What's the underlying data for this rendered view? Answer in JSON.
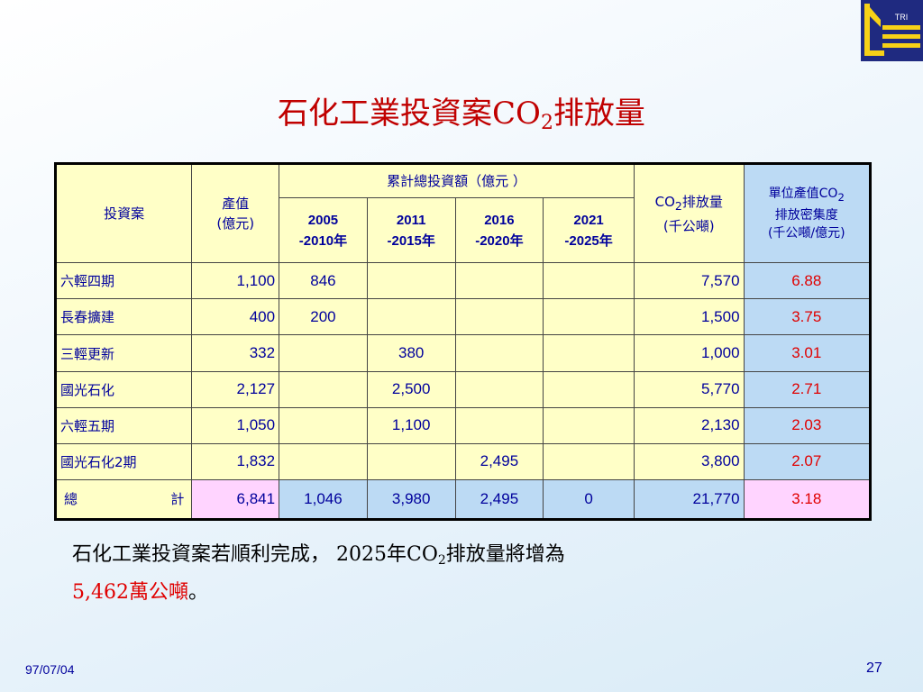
{
  "logo": {
    "text": "TRI",
    "color": "#f7d117",
    "bg": "#1f2a80"
  },
  "title": {
    "main": "石化工業投資案CO",
    "sub": "2",
    "tail": "排放量"
  },
  "table": {
    "col_project": "投資案",
    "col_value_line1": "產值",
    "col_value_line2": "(億元)",
    "col_invest": "累計總投資額（億元 ）",
    "years": [
      {
        "a": "2005",
        "b": "-2010年"
      },
      {
        "a": "2011",
        "b": "-2015年"
      },
      {
        "a": "2016",
        "b": "-2020年"
      },
      {
        "a": "2021",
        "b": "-2025年"
      }
    ],
    "col_co2_a": "CO",
    "col_co2_sub": "2",
    "col_co2_b": "排放量",
    "col_co2_c": "(千公噸)",
    "col_int_a": "單位產值CO",
    "col_int_sub": "2",
    "col_int_b": "排放密集度",
    "col_int_c": "(千公噸/億元)",
    "rows": [
      {
        "name": "六輕四期",
        "value": "1,100",
        "y1": "846",
        "y2": "",
        "y3": "",
        "y4": "",
        "co2": "7,570",
        "ratio": "6.88"
      },
      {
        "name": "長春擴建",
        "value": "400",
        "y1": "200",
        "y2": "",
        "y3": "",
        "y4": "",
        "co2": "1,500",
        "ratio": "3.75"
      },
      {
        "name": "三輕更新",
        "value": "332",
        "y1": "",
        "y2": "380",
        "y3": "",
        "y4": "",
        "co2": "1,000",
        "ratio": "3.01"
      },
      {
        "name": "國光石化",
        "value": "2,127",
        "y1": "",
        "y2": "2,500",
        "y3": "",
        "y4": "",
        "co2": "5,770",
        "ratio": "2.71"
      },
      {
        "name": "六輕五期",
        "value": "1,050",
        "y1": "",
        "y2": "1,100",
        "y3": "",
        "y4": "",
        "co2": "2,130",
        "ratio": "2.03"
      },
      {
        "name": "國光石化2期",
        "value": "1,832",
        "y1": "",
        "y2": "",
        "y3": "2,495",
        "y4": "",
        "co2": "3,800",
        "ratio": "2.07"
      }
    ],
    "total": {
      "name_a": "總",
      "name_b": "計",
      "value": "6,841",
      "y1": "1,046",
      "y2": "3,980",
      "y3": "2,495",
      "y4": "0",
      "co2": "21,770",
      "ratio": "3.18"
    }
  },
  "note": {
    "part1": "石化工業投資案若順利完成，",
    "part2": "2025年CO",
    "sub": "2",
    "part3": "排放量將增為",
    "highlight": "5,462萬公噸",
    "end": "。"
  },
  "footer": {
    "date": "97/07/04",
    "page": "27"
  }
}
